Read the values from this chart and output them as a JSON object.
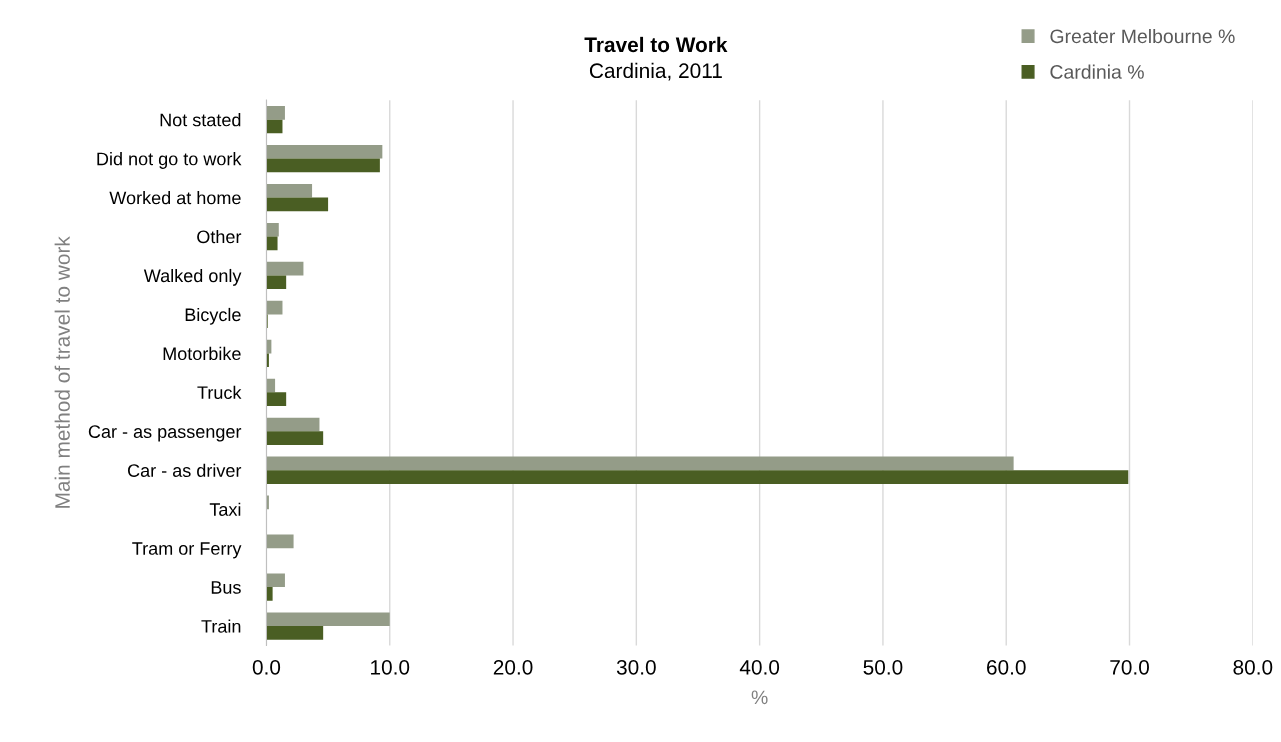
{
  "chart_data": {
    "type": "bar",
    "orientation": "horizontal",
    "title": "Travel to Work",
    "subtitle": "Cardinia, 2011",
    "xlabel": "%",
    "ylabel": "Main method of travel to work",
    "categories": [
      "Not stated",
      "Did not go to work",
      "Worked at home",
      "Other",
      "Walked only",
      "Bicycle",
      "Motorbike",
      "Truck",
      "Car - as passenger",
      "Car - as driver",
      "Taxi",
      "Tram or Ferry",
      "Bus",
      "Train"
    ],
    "series": [
      {
        "name": "Greater Melbourne %",
        "color": "#949c88",
        "values": [
          1.5,
          9.4,
          3.7,
          1.0,
          3.0,
          1.3,
          0.4,
          0.7,
          4.3,
          60.6,
          0.2,
          2.2,
          1.5,
          10.0
        ]
      },
      {
        "name": "Cardinia %",
        "color": "#4a5e23",
        "values": [
          1.3,
          9.2,
          5.0,
          0.9,
          1.6,
          0.1,
          0.2,
          1.6,
          4.6,
          69.9,
          0.0,
          0.0,
          0.5,
          4.6
        ]
      }
    ],
    "xlim": [
      0,
      80
    ],
    "xticks": [
      {
        "value": 0,
        "label": "0.0"
      },
      {
        "value": 10,
        "label": "10.0"
      },
      {
        "value": 20,
        "label": "20.0"
      },
      {
        "value": 30,
        "label": "30.0"
      },
      {
        "value": 40,
        "label": "40.0"
      },
      {
        "value": 50,
        "label": "50.0"
      },
      {
        "value": 60,
        "label": "60.0"
      },
      {
        "value": 70,
        "label": "70.0"
      },
      {
        "value": 80,
        "label": "80.0"
      }
    ],
    "grid": "x",
    "legend": "top right"
  }
}
